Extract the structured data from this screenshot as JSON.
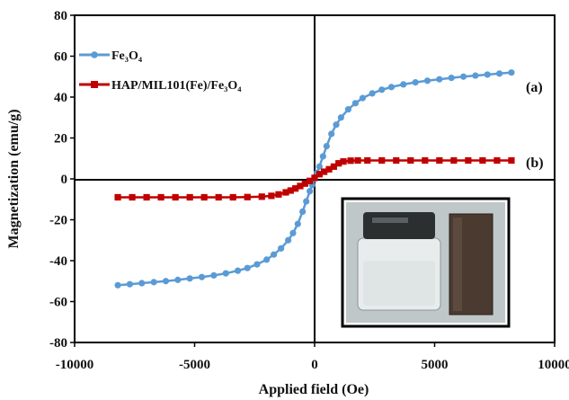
{
  "chart_data": {
    "type": "scatter",
    "title": "",
    "xlabel": "Applied field (Oe)",
    "ylabel": "Magnetization (emu/g)",
    "xlim": [
      -10000,
      10000
    ],
    "ylim": [
      -80,
      80
    ],
    "xticks": [
      "-10000",
      "-5000",
      "0",
      "5000",
      "10000"
    ],
    "yticks": [
      "-80",
      "-60",
      "-40",
      "-20",
      "0",
      "20",
      "40",
      "60",
      "80"
    ],
    "grid": false,
    "legend_position": "top-left",
    "series": [
      {
        "name": "Fe₃O₄",
        "color": "#5b9bd5",
        "marker": "circle",
        "label": "(a)",
        "x": [
          -8200,
          -7700,
          -7200,
          -6700,
          -6200,
          -5700,
          -5200,
          -4700,
          -4200,
          -3700,
          -3200,
          -2800,
          -2400,
          -2000,
          -1700,
          -1400,
          -1100,
          -900,
          -700,
          -500,
          -350,
          -200,
          -100,
          0,
          100,
          200,
          350,
          500,
          700,
          900,
          1100,
          1400,
          1700,
          2000,
          2400,
          2800,
          3200,
          3700,
          4200,
          4700,
          5200,
          5700,
          6200,
          6700,
          7200,
          7700,
          8200
        ],
        "y": [
          -52,
          -51.5,
          -51,
          -50.5,
          -50,
          -49.4,
          -48.7,
          -48,
          -47.2,
          -46.2,
          -44.9,
          -43.6,
          -41.8,
          -39.5,
          -37,
          -34,
          -30,
          -26.5,
          -22,
          -16,
          -11,
          -6,
          -3,
          0,
          3,
          6,
          11,
          16,
          22,
          26.5,
          30,
          34,
          37,
          39.5,
          41.8,
          43.6,
          44.9,
          46.2,
          47.2,
          48,
          48.7,
          49.4,
          50,
          50.5,
          51,
          51.5,
          52
        ]
      },
      {
        "name": "HAP/MIL101(Fe)/Fe₃O₄",
        "color": "#c00000",
        "marker": "square",
        "label": "(b)",
        "x": [
          -8200,
          -7600,
          -7000,
          -6400,
          -5800,
          -5200,
          -4600,
          -4000,
          -3400,
          -2800,
          -2200,
          -1800,
          -1500,
          -1200,
          -1000,
          -800,
          -600,
          -400,
          -200,
          0,
          200,
          400,
          600,
          800,
          1000,
          1200,
          1500,
          1800,
          2200,
          2800,
          3400,
          4000,
          4600,
          5200,
          5800,
          6400,
          7000,
          7600,
          8200
        ],
        "y": [
          -9,
          -9,
          -9,
          -9,
          -9,
          -9,
          -9,
          -9,
          -9,
          -8.9,
          -8.7,
          -8.3,
          -7.6,
          -6.6,
          -5.7,
          -4.7,
          -3.5,
          -2.3,
          -1,
          0.5,
          2.3,
          3.5,
          4.7,
          6,
          7.6,
          8.5,
          8.9,
          9,
          9,
          9,
          9,
          9,
          9,
          9,
          9,
          9,
          9,
          9,
          9
        ]
      }
    ]
  }
}
